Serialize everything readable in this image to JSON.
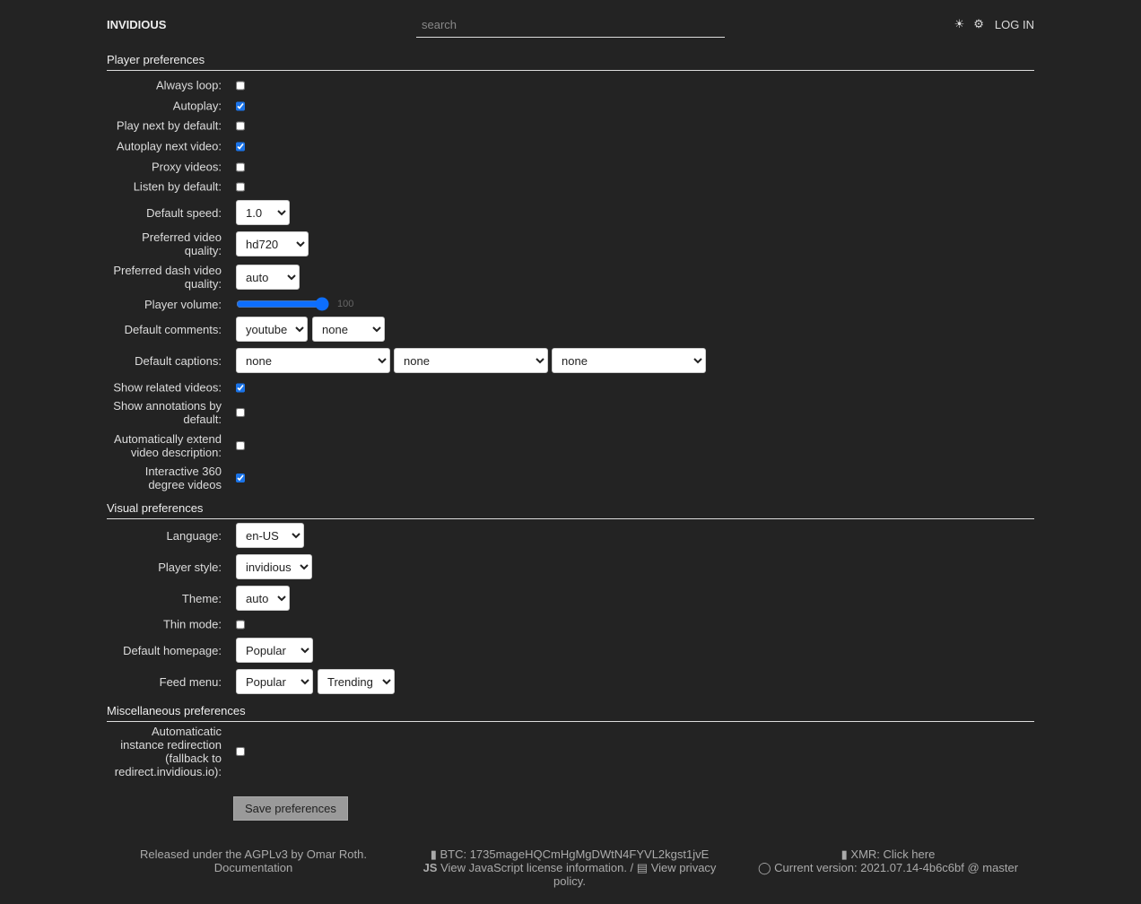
{
  "header": {
    "brand": "INVIDIOUS",
    "search_placeholder": "search",
    "theme_icon": "☀",
    "settings_icon": "⚙",
    "login": "LOG IN"
  },
  "player": {
    "title": "Player preferences",
    "always_loop": {
      "label": "Always loop:",
      "checked": false
    },
    "autoplay": {
      "label": "Autoplay:",
      "checked": true
    },
    "play_next": {
      "label": "Play next by default:",
      "checked": false
    },
    "autoplay_next": {
      "label": "Autoplay next video:",
      "checked": true
    },
    "proxy": {
      "label": "Proxy videos:",
      "checked": false
    },
    "listen": {
      "label": "Listen by default:",
      "checked": false
    },
    "speed": {
      "label": "Default speed:",
      "value": "1.0"
    },
    "quality": {
      "label": "Preferred video quality:",
      "value": "hd720"
    },
    "dash_quality": {
      "label": "Preferred dash video quality:",
      "value": "auto"
    },
    "volume": {
      "label": "Player volume:",
      "value": "100"
    },
    "comments": {
      "label": "Default comments:",
      "values": [
        "youtube",
        "none"
      ]
    },
    "captions": {
      "label": "Default captions:",
      "values": [
        "none",
        "none",
        "none"
      ]
    },
    "related": {
      "label": "Show related videos:",
      "checked": true
    },
    "annotations": {
      "label": "Show annotations by default:",
      "checked": false
    },
    "extend_desc": {
      "label": "Automatically extend video description:",
      "checked": false
    },
    "vr": {
      "label": "Interactive 360 degree videos",
      "checked": true
    }
  },
  "visual": {
    "title": "Visual preferences",
    "language": {
      "label": "Language:",
      "value": "en-US"
    },
    "player_style": {
      "label": "Player style:",
      "value": "invidious"
    },
    "theme": {
      "label": "Theme:",
      "value": "auto"
    },
    "thin": {
      "label": "Thin mode:",
      "checked": false
    },
    "homepage": {
      "label": "Default homepage:",
      "value": "Popular"
    },
    "feed_menu": {
      "label": "Feed menu:",
      "values": [
        "Popular",
        "Trending"
      ]
    }
  },
  "misc": {
    "title": "Miscellaneous preferences",
    "redirect": {
      "label": "Automaticatic instance redirection (fallback to redirect.invidious.io):",
      "checked": false
    }
  },
  "save_label": "Save preferences",
  "footer": {
    "released": "Released under the AGPLv3 by Omar Roth.",
    "docs": "Documentation",
    "btc": "BTC: 1735mageHQCmHgMgDWtN4FYVL2kgst1jvE",
    "js": "View JavaScript license information.",
    "sep": " / ",
    "privacy": "View privacy policy.",
    "xmr": "XMR: Click here",
    "version": "Current version: 2021.07.14-4b6c6bf @ master"
  },
  "colors": {
    "background": "#232323",
    "accent": "#1a73e8"
  }
}
